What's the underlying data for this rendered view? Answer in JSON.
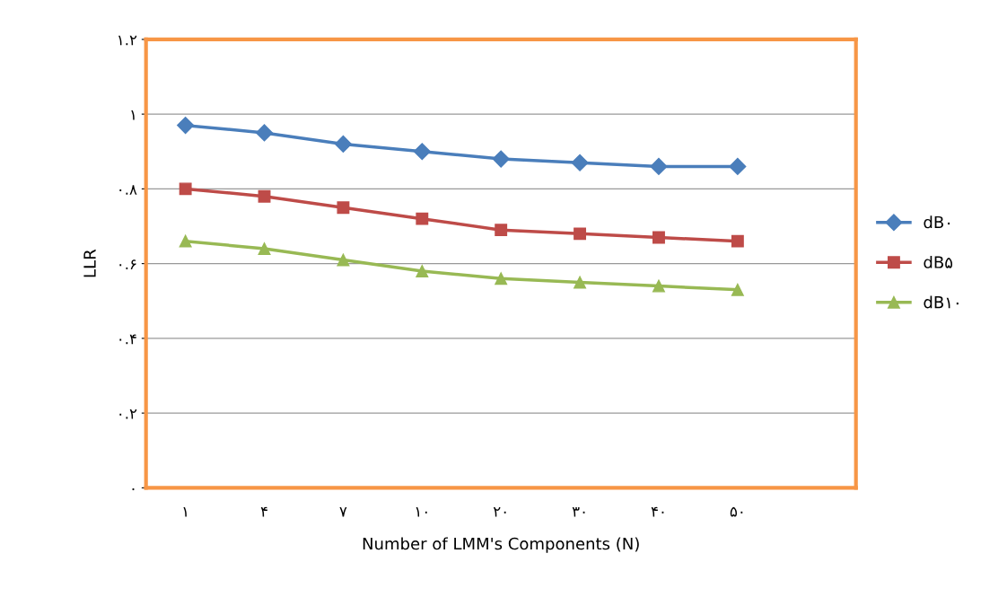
{
  "chart_data": {
    "type": "line",
    "xlabel": "Number of LMM's Components (N)",
    "ylabel": "LLR",
    "categories": [
      "۱",
      "۴",
      "۷",
      "۱۰",
      "۲۰",
      "۳۰",
      "۴۰",
      "۵۰",
      null
    ],
    "series": [
      {
        "name": "dB۰",
        "color": "#4a7ebb",
        "marker": "diamond",
        "values": [
          0.97,
          0.95,
          0.92,
          0.9,
          0.88,
          0.87,
          0.86,
          0.86,
          null
        ]
      },
      {
        "name": "dB۵",
        "color": "#be4b48",
        "marker": "square",
        "values": [
          0.8,
          0.78,
          0.75,
          0.72,
          0.69,
          0.68,
          0.67,
          0.66,
          null
        ]
      },
      {
        "name": "dB۱۰",
        "color": "#98b954",
        "marker": "triangle",
        "values": [
          0.66,
          0.64,
          0.61,
          0.58,
          0.56,
          0.55,
          0.54,
          0.53,
          null
        ]
      }
    ],
    "ylim": [
      0,
      1.2
    ],
    "yticks": [
      {
        "value": 0,
        "label": "۰"
      },
      {
        "value": 0.2,
        "label": "۰.۲"
      },
      {
        "value": 0.4,
        "label": "۰.۴"
      },
      {
        "value": 0.6,
        "label": "۰.۶"
      },
      {
        "value": 0.8,
        "label": "۰.۸"
      },
      {
        "value": 1,
        "label": "۱"
      },
      {
        "value": 1.2,
        "label": "۱.۲"
      }
    ],
    "grid": "y",
    "legend": "right",
    "line_style": "solid"
  }
}
